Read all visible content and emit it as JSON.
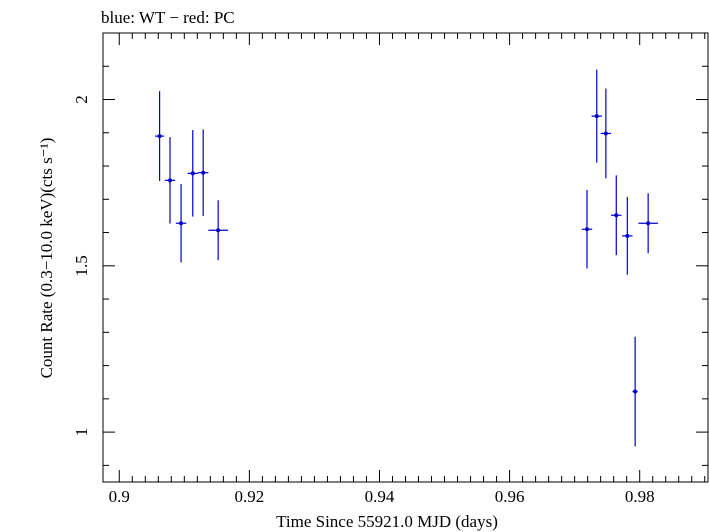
{
  "chart_data": {
    "type": "scatter",
    "title": "blue: WT − red: PC",
    "xlabel": "Time Since 55921.0 MJD (days)",
    "ylabel": "Count Rate (0.3−10.0 keV)(cts s⁻¹)",
    "xlim": [
      0.8975,
      0.9905
    ],
    "ylim": [
      0.85,
      2.2
    ],
    "x_ticks": [
      0.9,
      0.92,
      0.94,
      0.96,
      0.98
    ],
    "x_tick_labels": [
      "0.9",
      "0.92",
      "0.94",
      "0.96",
      "0.98"
    ],
    "y_ticks": [
      1,
      1.5,
      2
    ],
    "y_tick_labels": [
      "1",
      "1.5",
      "2"
    ],
    "grid": false,
    "series": [
      {
        "name": "WT",
        "color": "#0000cc",
        "points": [
          {
            "x": 0.9062,
            "y": 1.89,
            "xerr": 0.0007,
            "yerr": 0.135
          },
          {
            "x": 0.9078,
            "y": 1.757,
            "xerr": 0.0008,
            "yerr": 0.13
          },
          {
            "x": 0.9095,
            "y": 1.628,
            "xerr": 0.0008,
            "yerr": 0.118
          },
          {
            "x": 0.9113,
            "y": 1.778,
            "xerr": 0.0008,
            "yerr": 0.13
          },
          {
            "x": 0.9129,
            "y": 1.78,
            "xerr": 0.0008,
            "yerr": 0.13
          },
          {
            "x": 0.9152,
            "y": 1.607,
            "xerr": 0.0015,
            "yerr": 0.09
          },
          {
            "x": 0.9719,
            "y": 1.61,
            "xerr": 0.0008,
            "yerr": 0.118
          },
          {
            "x": 0.9734,
            "y": 1.95,
            "xerr": 0.0008,
            "yerr": 0.14
          },
          {
            "x": 0.9748,
            "y": 1.898,
            "xerr": 0.0008,
            "yerr": 0.135
          },
          {
            "x": 0.9764,
            "y": 1.652,
            "xerr": 0.0008,
            "yerr": 0.12
          },
          {
            "x": 0.9781,
            "y": 1.59,
            "xerr": 0.0008,
            "yerr": 0.117
          },
          {
            "x": 0.9793,
            "y": 1.122,
            "xerr": 0.0004,
            "yerr": 0.165
          },
          {
            "x": 0.9813,
            "y": 1.628,
            "xerr": 0.0015,
            "yerr": 0.09
          }
        ]
      },
      {
        "name": "PC",
        "color": "#cc0000",
        "points": []
      }
    ]
  }
}
